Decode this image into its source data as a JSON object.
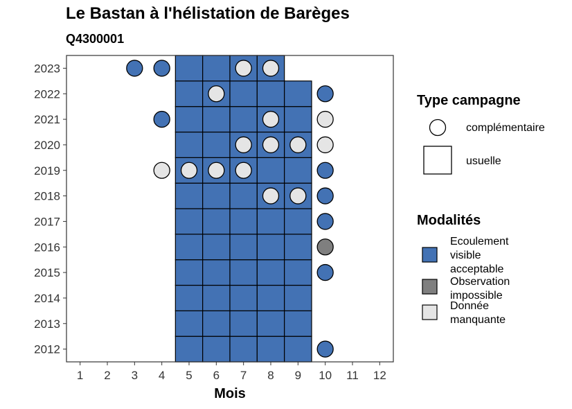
{
  "title": "Le Bastan à l'hélistation de Barèges",
  "subtitle": "Q4300001",
  "colors": {
    "Ecoulement visible acceptable": "#4372b4",
    "Observation impossible": "#7f7f7f",
    "Donnée manquante": "#e5e5e5"
  },
  "chart_data": {
    "type": "heatmap",
    "title": "Le Bastan à l'hélistation de Barèges",
    "subtitle": "Q4300001",
    "xlabel": "Mois",
    "ylabel": "",
    "x_ticks": [
      "1",
      "2",
      "3",
      "4",
      "5",
      "6",
      "7",
      "8",
      "9",
      "10",
      "11",
      "12"
    ],
    "y_ticks": [
      "2012",
      "2013",
      "2014",
      "2015",
      "2016",
      "2017",
      "2018",
      "2019",
      "2020",
      "2021",
      "2022",
      "2023"
    ],
    "xlim": [
      0.5,
      12.5
    ],
    "ylim": [
      2011.5,
      2023.5
    ],
    "grid": false,
    "legends": [
      {
        "title": "Type campagne",
        "position": "right",
        "entries": [
          {
            "label": "complémentaire",
            "shape": "circle"
          },
          {
            "label": "usuelle",
            "shape": "square"
          }
        ]
      },
      {
        "title": "Modalités",
        "position": "right",
        "entries": [
          {
            "label": "Ecoulement visible acceptable",
            "lines": [
              "Ecoulement",
              "visible",
              "acceptable"
            ],
            "color": "#4372b4"
          },
          {
            "label": "Observation impossible",
            "lines": [
              "Observation",
              "impossible"
            ],
            "color": "#7f7f7f"
          },
          {
            "label": "Donnée manquante",
            "lines": [
              "Donnée",
              "manquante"
            ],
            "color": "#e5e5e5"
          }
        ]
      }
    ],
    "usuelle": [
      {
        "year": 2012,
        "months": [
          5,
          6,
          7,
          8,
          9
        ],
        "modalite": "Ecoulement visible acceptable"
      },
      {
        "year": 2013,
        "months": [
          5,
          6,
          7,
          8,
          9
        ],
        "modalite": "Ecoulement visible acceptable"
      },
      {
        "year": 2014,
        "months": [
          5,
          6,
          7,
          8,
          9
        ],
        "modalite": "Ecoulement visible acceptable"
      },
      {
        "year": 2015,
        "months": [
          5,
          6,
          7,
          8,
          9
        ],
        "modalite": "Ecoulement visible acceptable"
      },
      {
        "year": 2016,
        "months": [
          5,
          6,
          7,
          8,
          9
        ],
        "modalite": "Ecoulement visible acceptable"
      },
      {
        "year": 2017,
        "months": [
          5,
          6,
          7,
          8,
          9
        ],
        "modalite": "Ecoulement visible acceptable"
      },
      {
        "year": 2018,
        "months": [
          5,
          6,
          7,
          8,
          9
        ],
        "modalite": "Ecoulement visible acceptable"
      },
      {
        "year": 2019,
        "months": [
          5,
          6,
          7,
          8,
          9
        ],
        "modalite": "Ecoulement visible acceptable"
      },
      {
        "year": 2020,
        "months": [
          5,
          6,
          7,
          8,
          9
        ],
        "modalite": "Ecoulement visible acceptable"
      },
      {
        "year": 2021,
        "months": [
          5,
          6,
          7,
          8,
          9
        ],
        "modalite": "Ecoulement visible acceptable"
      },
      {
        "year": 2022,
        "months": [
          5,
          6,
          7,
          8,
          9
        ],
        "modalite": "Ecoulement visible acceptable"
      },
      {
        "year": 2023,
        "months": [
          5,
          6,
          7,
          8
        ],
        "modalite": "Ecoulement visible acceptable"
      }
    ],
    "complementaire": [
      {
        "year": 2023,
        "month": 3,
        "modalite": "Ecoulement visible acceptable"
      },
      {
        "year": 2023,
        "month": 4,
        "modalite": "Ecoulement visible acceptable"
      },
      {
        "year": 2023,
        "month": 7,
        "modalite": "Donnée manquante"
      },
      {
        "year": 2023,
        "month": 8,
        "modalite": "Donnée manquante"
      },
      {
        "year": 2022,
        "month": 6,
        "modalite": "Donnée manquante"
      },
      {
        "year": 2022,
        "month": 10,
        "modalite": "Ecoulement visible acceptable"
      },
      {
        "year": 2021,
        "month": 4,
        "modalite": "Ecoulement visible acceptable"
      },
      {
        "year": 2021,
        "month": 8,
        "modalite": "Donnée manquante"
      },
      {
        "year": 2021,
        "month": 10,
        "modalite": "Donnée manquante"
      },
      {
        "year": 2020,
        "month": 7,
        "modalite": "Donnée manquante"
      },
      {
        "year": 2020,
        "month": 8,
        "modalite": "Donnée manquante"
      },
      {
        "year": 2020,
        "month": 9,
        "modalite": "Donnée manquante"
      },
      {
        "year": 2020,
        "month": 10,
        "modalite": "Donnée manquante"
      },
      {
        "year": 2019,
        "month": 4,
        "modalite": "Donnée manquante"
      },
      {
        "year": 2019,
        "month": 5,
        "modalite": "Donnée manquante"
      },
      {
        "year": 2019,
        "month": 6,
        "modalite": "Donnée manquante"
      },
      {
        "year": 2019,
        "month": 7,
        "modalite": "Donnée manquante"
      },
      {
        "year": 2019,
        "month": 10,
        "modalite": "Ecoulement visible acceptable"
      },
      {
        "year": 2018,
        "month": 8,
        "modalite": "Donnée manquante"
      },
      {
        "year": 2018,
        "month": 9,
        "modalite": "Donnée manquante"
      },
      {
        "year": 2018,
        "month": 10,
        "modalite": "Ecoulement visible acceptable"
      },
      {
        "year": 2017,
        "month": 10,
        "modalite": "Ecoulement visible acceptable"
      },
      {
        "year": 2016,
        "month": 10,
        "modalite": "Observation impossible"
      },
      {
        "year": 2015,
        "month": 10,
        "modalite": "Ecoulement visible acceptable"
      },
      {
        "year": 2012,
        "month": 10,
        "modalite": "Ecoulement visible acceptable"
      }
    ]
  }
}
